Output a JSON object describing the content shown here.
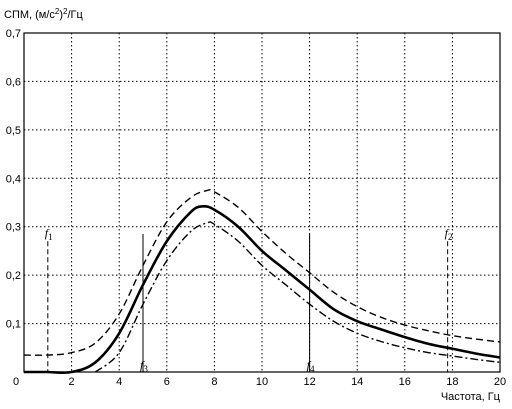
{
  "chart_data": {
    "type": "line",
    "ylabel_main": "СПМ, (м/с",
    "ylabel_sup1": "2",
    "ylabel_mid": ")",
    "ylabel_sup2": "2",
    "ylabel_tail": "/Гц",
    "xlabel": "Частота, Гц",
    "xlim": [
      0,
      20
    ],
    "ylim": [
      0,
      0.7
    ],
    "x_ticks": [
      0,
      2,
      4,
      6,
      8,
      10,
      12,
      14,
      16,
      18,
      20
    ],
    "y_ticks": [
      0.1,
      0.2,
      0.3,
      0.4,
      0.5,
      0.6,
      0.7
    ],
    "x_tick_labels": [
      "0",
      "2",
      "4",
      "6",
      "8",
      "10",
      "12",
      "14",
      "16",
      "18",
      "20"
    ],
    "y_tick_labels": [
      "0,1",
      "0,2",
      "0,3",
      "0,4",
      "0,5",
      "0,6",
      "0,7"
    ],
    "grid": true,
    "series": [
      {
        "style": "solid",
        "x": [
          1,
          2,
          3,
          4,
          5,
          6,
          7,
          7.5,
          8,
          9,
          10,
          11,
          12,
          13,
          14,
          15,
          16,
          17,
          18,
          19,
          20
        ],
        "y": [
          0,
          0,
          0.02,
          0.08,
          0.18,
          0.27,
          0.33,
          0.342,
          0.335,
          0.3,
          0.25,
          0.21,
          0.17,
          0.13,
          0.105,
          0.088,
          0.072,
          0.058,
          0.048,
          0.038,
          0.03
        ]
      },
      {
        "style": "dashed",
        "x": [
          0,
          1,
          2,
          3,
          4,
          5,
          6,
          7,
          7.7,
          8,
          9,
          10,
          11,
          12,
          13,
          14,
          15,
          16,
          17,
          18,
          19,
          20
        ],
        "y": [
          0.035,
          0.035,
          0.04,
          0.06,
          0.12,
          0.22,
          0.31,
          0.36,
          0.375,
          0.372,
          0.34,
          0.29,
          0.245,
          0.205,
          0.165,
          0.135,
          0.113,
          0.097,
          0.085,
          0.075,
          0.068,
          0.062
        ]
      },
      {
        "style": "dashdot",
        "x": [
          3,
          4,
          5,
          6,
          7,
          7.7,
          8,
          9,
          10,
          11,
          12,
          13,
          14,
          15,
          16,
          17,
          18,
          19,
          20
        ],
        "y": [
          0,
          0.04,
          0.14,
          0.23,
          0.29,
          0.308,
          0.305,
          0.27,
          0.22,
          0.18,
          0.14,
          0.105,
          0.08,
          0.063,
          0.05,
          0.04,
          0.033,
          0.026,
          0.02
        ]
      }
    ],
    "markers": [
      {
        "name": "f",
        "sub": "1",
        "x": 1,
        "y_top": 0.27,
        "style": "dashed",
        "label_y": 0.25,
        "label_pos": "top"
      },
      {
        "name": "f",
        "sub": "2",
        "x": 17.8,
        "y_top": 0.27,
        "style": "dashed",
        "label_y": 0.25,
        "label_pos": "top"
      },
      {
        "name": "f",
        "sub": "3",
        "x": 5,
        "y_top": 0.285,
        "style": "solid",
        "label_y": 0.0,
        "label_pos": "bottom"
      },
      {
        "name": "f",
        "sub": "4",
        "x": 12,
        "y_top": 0.285,
        "style": "solid",
        "label_y": 0.0,
        "label_pos": "bottom"
      }
    ]
  }
}
